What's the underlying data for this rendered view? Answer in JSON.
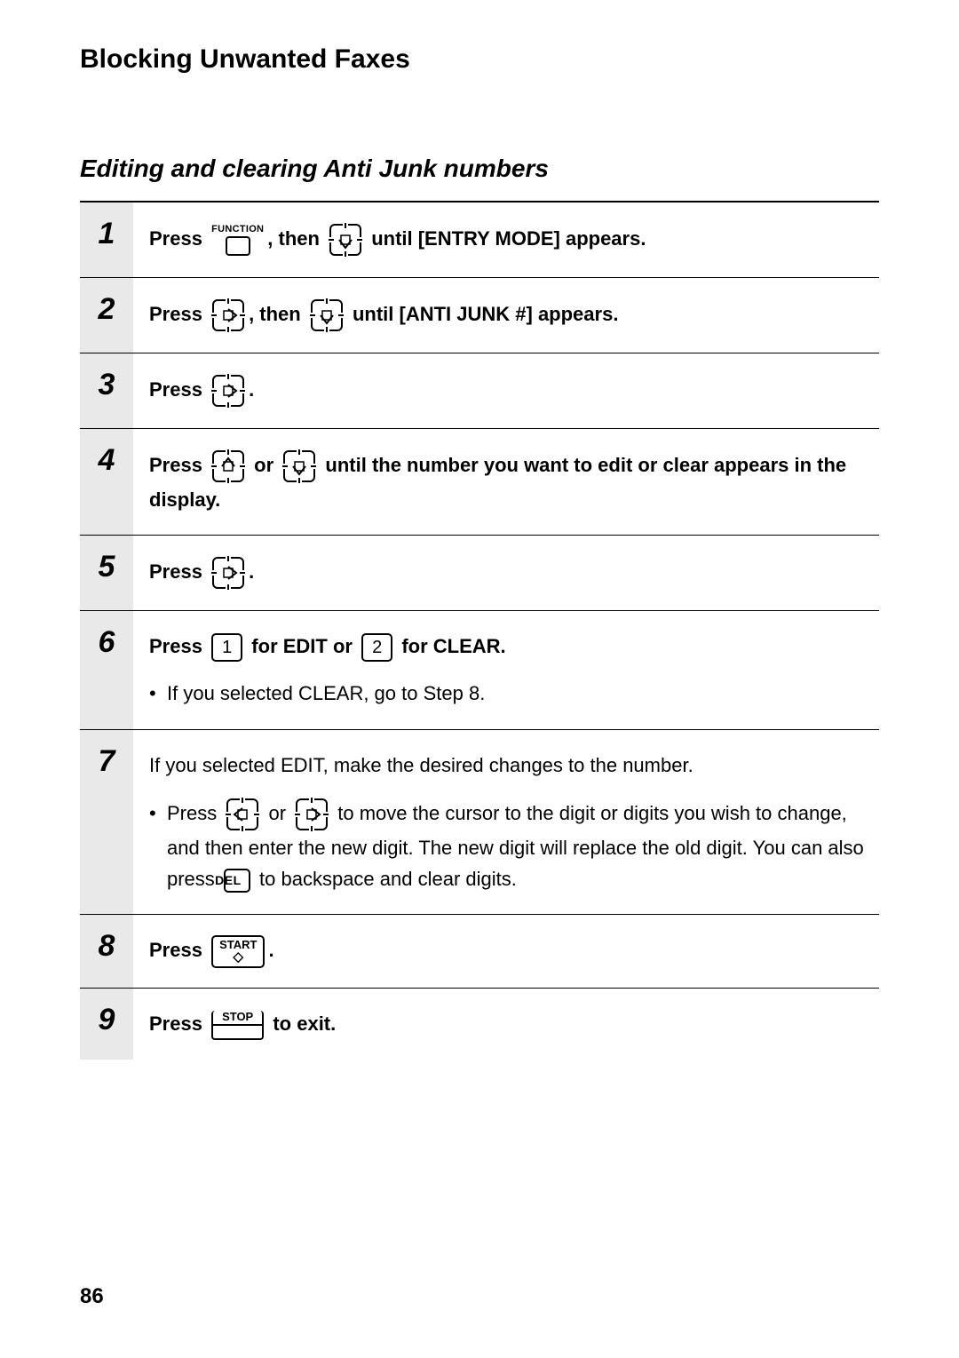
{
  "page": {
    "title": "Blocking Unwanted Faxes",
    "section": "Editing and clearing Anti Junk numbers",
    "page_number": "86"
  },
  "keys": {
    "function_label": "FUNCTION",
    "del_label": "DEL",
    "start_label": "START",
    "stop_label": "STOP",
    "digit_1": "1",
    "digit_2": "2"
  },
  "icons": {
    "stroke": "#000000",
    "fill": "#ffffff",
    "size": 40
  },
  "steps": [
    {
      "num": "1",
      "parts": [
        {
          "t": "bold",
          "v": "Press "
        },
        {
          "t": "icon",
          "v": "function"
        },
        {
          "t": "bold",
          "v": ", then "
        },
        {
          "t": "icon",
          "v": "nav-down"
        },
        {
          "t": "bold",
          "v": " until [ENTRY MODE] appears."
        }
      ]
    },
    {
      "num": "2",
      "parts": [
        {
          "t": "bold",
          "v": "Press "
        },
        {
          "t": "icon",
          "v": "nav-right"
        },
        {
          "t": "bold",
          "v": ", then "
        },
        {
          "t": "icon",
          "v": "nav-down"
        },
        {
          "t": "bold",
          "v": " until [ANTI JUNK #] appears."
        }
      ]
    },
    {
      "num": "3",
      "parts": [
        {
          "t": "bold",
          "v": "Press "
        },
        {
          "t": "icon",
          "v": "nav-right"
        },
        {
          "t": "bold",
          "v": "."
        }
      ]
    },
    {
      "num": "4",
      "parts": [
        {
          "t": "bold",
          "v": "Press "
        },
        {
          "t": "icon",
          "v": "nav-up"
        },
        {
          "t": "bold",
          "v": " or "
        },
        {
          "t": "icon",
          "v": "nav-down"
        },
        {
          "t": "bold",
          "v": " until the number you want to edit or clear appears in the display."
        }
      ]
    },
    {
      "num": "5",
      "parts": [
        {
          "t": "bold",
          "v": "Press "
        },
        {
          "t": "icon",
          "v": "nav-right"
        },
        {
          "t": "bold",
          "v": "."
        }
      ]
    },
    {
      "num": "6",
      "parts": [
        {
          "t": "bold",
          "v": "Press "
        },
        {
          "t": "key",
          "v": "digit_1"
        },
        {
          "t": "bold",
          "v": " for EDIT or "
        },
        {
          "t": "key",
          "v": "digit_2"
        },
        {
          "t": "bold",
          "v": " for CLEAR."
        }
      ],
      "bullets": [
        [
          {
            "t": "text",
            "v": "If you selected CLEAR, go to Step 8."
          }
        ]
      ]
    },
    {
      "num": "7",
      "parts": [
        {
          "t": "text",
          "v": "If you selected EDIT, make the desired changes to the number."
        }
      ],
      "bullets": [
        [
          {
            "t": "text",
            "v": "Press "
          },
          {
            "t": "icon",
            "v": "nav-left"
          },
          {
            "t": "text",
            "v": " or "
          },
          {
            "t": "icon",
            "v": "nav-right"
          },
          {
            "t": "text",
            "v": " to move the cursor to the digit or digits you wish to change, and then enter the new digit. The new digit will replace the old digit. You can also press "
          },
          {
            "t": "keydel",
            "v": "del_label"
          },
          {
            "t": "text",
            "v": " to backspace and clear digits."
          }
        ]
      ]
    },
    {
      "num": "8",
      "parts": [
        {
          "t": "bold",
          "v": "Press "
        },
        {
          "t": "keystart",
          "v": "start_label"
        },
        {
          "t": "bold",
          "v": "."
        }
      ]
    },
    {
      "num": "9",
      "parts": [
        {
          "t": "bold",
          "v": "Press "
        },
        {
          "t": "keystop",
          "v": "stop_label"
        },
        {
          "t": "bold",
          "v": " to exit."
        }
      ]
    }
  ]
}
